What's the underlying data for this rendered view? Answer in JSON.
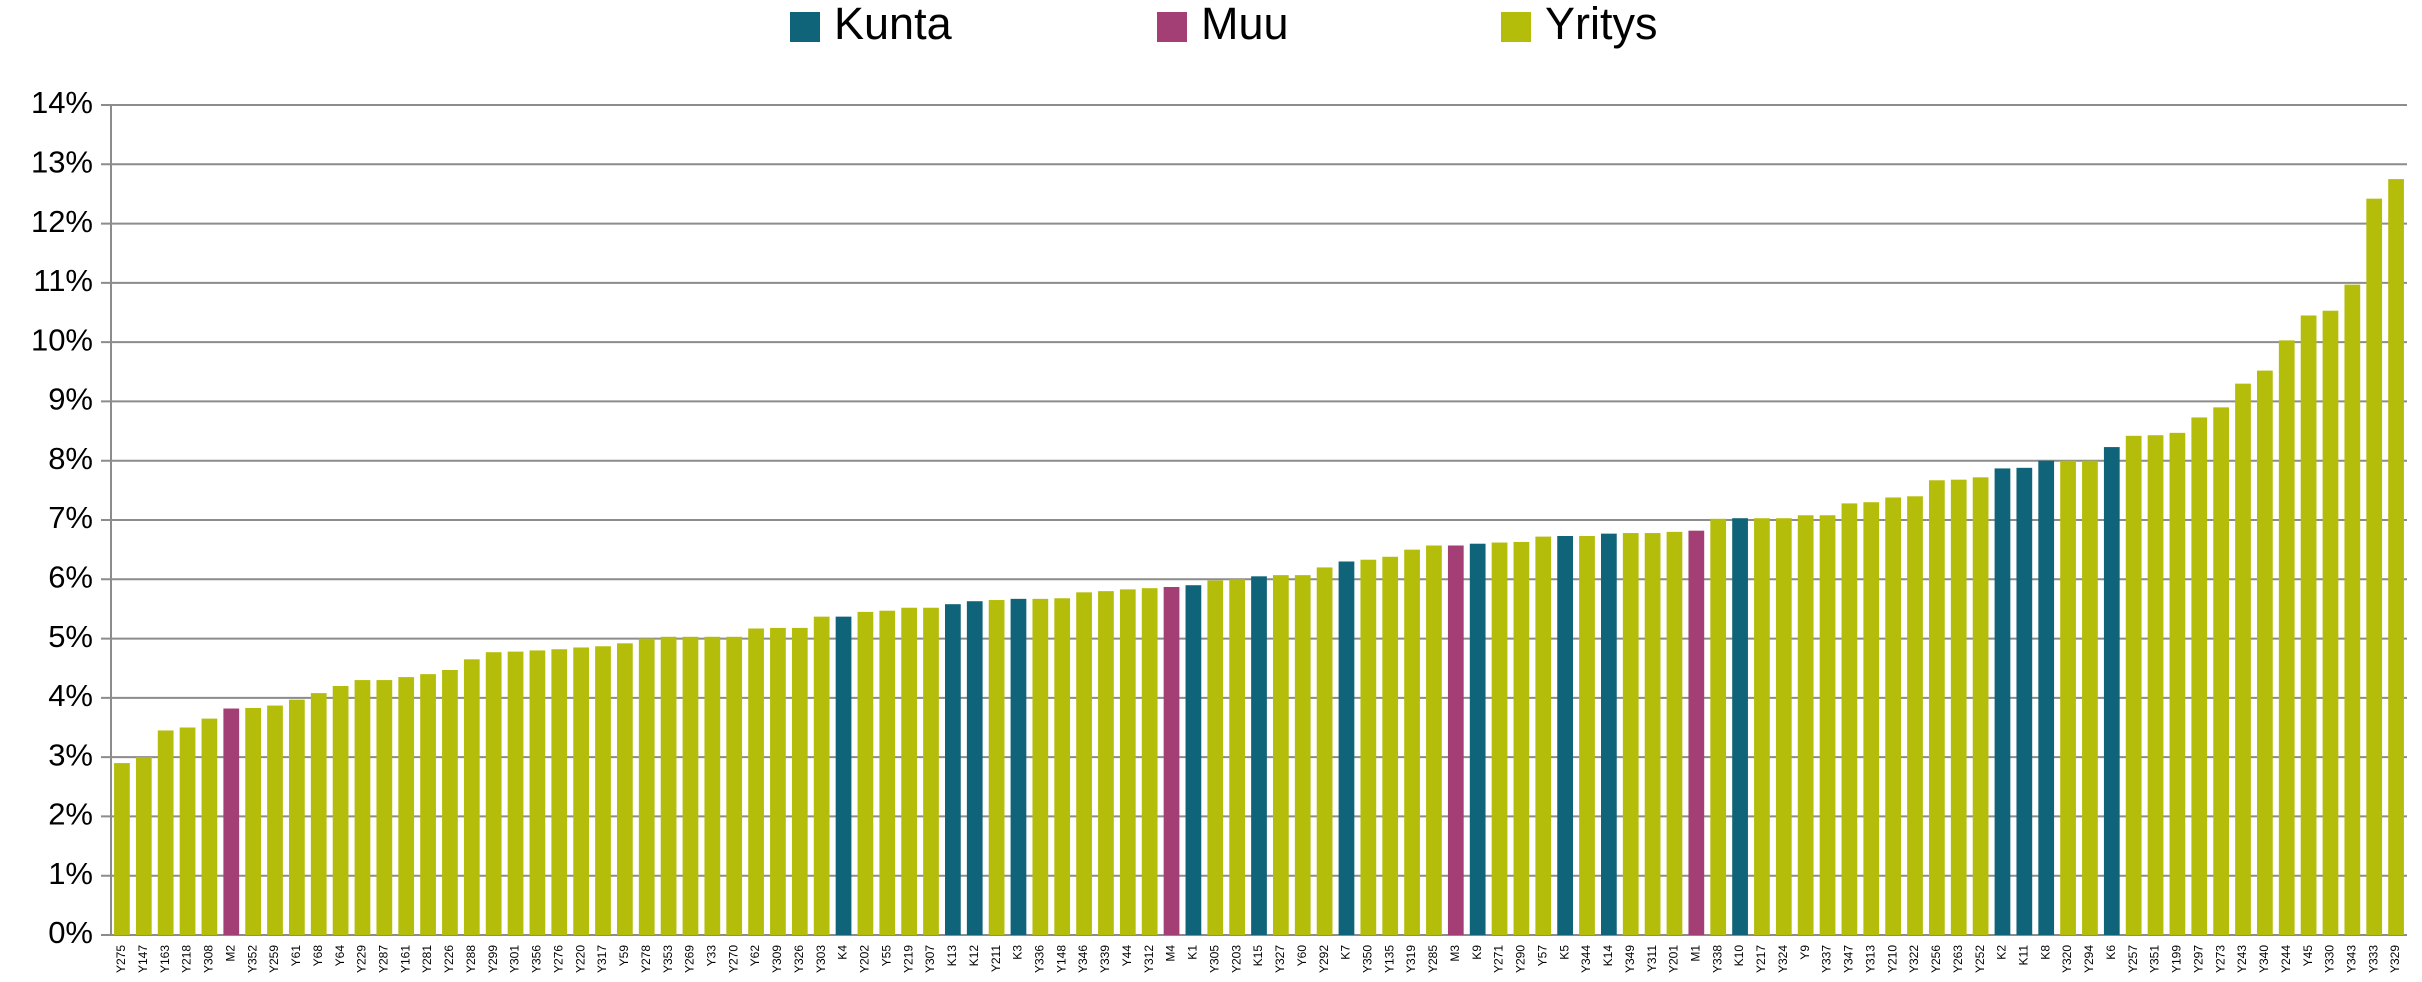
{
  "chart_data": {
    "type": "bar",
    "categories": [
      "Y275",
      "Y147",
      "Y163",
      "Y218",
      "Y308",
      "M2",
      "Y352",
      "Y259",
      "Y61",
      "Y68",
      "Y64",
      "Y229",
      "Y287",
      "Y161",
      "Y281",
      "Y226",
      "Y288",
      "Y299",
      "Y301",
      "Y356",
      "Y276",
      "Y220",
      "Y317",
      "Y59",
      "Y278",
      "Y353",
      "Y269",
      "Y33",
      "Y270",
      "Y62",
      "Y309",
      "Y326",
      "Y303",
      "K4",
      "Y202",
      "Y55",
      "Y219",
      "Y307",
      "K13",
      "K12",
      "Y211",
      "K3",
      "Y336",
      "Y148",
      "Y346",
      "Y339",
      "Y44",
      "Y312",
      "M4",
      "K1",
      "Y305",
      "Y203",
      "K15",
      "Y327",
      "Y60",
      "Y292",
      "K7",
      "Y350",
      "Y135",
      "Y319",
      "Y285",
      "M3",
      "K9",
      "Y271",
      "Y290",
      "Y57",
      "K5",
      "Y344",
      "K14",
      "Y349",
      "Y311",
      "Y201",
      "M1",
      "Y338",
      "K10",
      "Y217",
      "Y324",
      "Y9",
      "Y337",
      "Y347",
      "Y313",
      "Y210",
      "Y322",
      "Y256",
      "Y263",
      "Y252",
      "K2",
      "K11",
      "K8",
      "Y320",
      "Y294",
      "K6",
      "Y257",
      "Y351",
      "Y199",
      "Y297",
      "Y273",
      "Y243",
      "Y340",
      "Y244",
      "Y45",
      "Y330",
      "Y343",
      "Y333",
      "Y329"
    ],
    "series": [
      {
        "name": "Kunta",
        "color": "#0f6479",
        "values": [
          null,
          null,
          null,
          null,
          null,
          null,
          null,
          null,
          null,
          null,
          null,
          null,
          null,
          null,
          null,
          null,
          null,
          null,
          null,
          null,
          null,
          null,
          null,
          null,
          null,
          null,
          null,
          null,
          null,
          null,
          null,
          null,
          null,
          5.37,
          null,
          null,
          null,
          null,
          5.58,
          5.63,
          null,
          5.67,
          null,
          null,
          null,
          null,
          null,
          null,
          null,
          5.9,
          null,
          null,
          6.05,
          null,
          null,
          null,
          6.3,
          null,
          null,
          null,
          null,
          null,
          6.6,
          null,
          null,
          null,
          6.73,
          null,
          6.77,
          null,
          null,
          null,
          null,
          null,
          7.03,
          null,
          null,
          null,
          null,
          null,
          null,
          null,
          null,
          null,
          null,
          null,
          7.87,
          7.88,
          8.0,
          null,
          null,
          8.23,
          null,
          null,
          null,
          null,
          null,
          null,
          null,
          null,
          null,
          null,
          null,
          null,
          null
        ]
      },
      {
        "name": "Muu",
        "color": "#a33f74",
        "values": [
          null,
          null,
          null,
          null,
          null,
          3.82,
          null,
          null,
          null,
          null,
          null,
          null,
          null,
          null,
          null,
          null,
          null,
          null,
          null,
          null,
          null,
          null,
          null,
          null,
          null,
          null,
          null,
          null,
          null,
          null,
          null,
          null,
          null,
          null,
          null,
          null,
          null,
          null,
          null,
          null,
          null,
          null,
          null,
          null,
          null,
          null,
          null,
          null,
          5.87,
          null,
          null,
          null,
          null,
          null,
          null,
          null,
          null,
          null,
          null,
          null,
          null,
          6.57,
          null,
          null,
          null,
          null,
          null,
          null,
          null,
          null,
          null,
          null,
          6.82,
          null,
          null,
          null,
          null,
          null,
          null,
          null,
          null,
          null,
          null,
          null,
          null,
          null,
          null,
          null,
          null,
          null,
          null,
          null,
          null,
          null,
          null,
          null,
          null,
          null,
          null,
          null,
          null,
          null,
          null,
          null,
          null
        ]
      },
      {
        "name": "Yritys",
        "color": "#b5bd0b",
        "values": [
          2.9,
          3.0,
          3.45,
          3.5,
          3.65,
          null,
          3.83,
          3.87,
          3.97,
          4.08,
          4.2,
          4.3,
          4.3,
          4.35,
          4.4,
          4.47,
          4.65,
          4.77,
          4.78,
          4.8,
          4.82,
          4.85,
          4.87,
          4.92,
          5.0,
          5.03,
          5.03,
          5.03,
          5.03,
          5.17,
          5.18,
          5.18,
          5.37,
          null,
          5.45,
          5.47,
          5.52,
          5.52,
          null,
          null,
          5.65,
          null,
          5.67,
          5.68,
          5.78,
          5.8,
          5.83,
          5.85,
          null,
          null,
          5.98,
          6.0,
          null,
          6.07,
          6.07,
          6.2,
          null,
          6.33,
          6.38,
          6.5,
          6.57,
          null,
          null,
          6.62,
          6.63,
          6.72,
          null,
          6.73,
          null,
          6.78,
          6.78,
          6.8,
          null,
          7.02,
          null,
          7.03,
          7.03,
          7.08,
          7.08,
          7.28,
          7.3,
          7.38,
          7.4,
          7.67,
          7.68,
          7.72,
          null,
          null,
          null,
          8.0,
          8.0,
          null,
          8.42,
          8.43,
          8.47,
          8.73,
          8.9,
          9.3,
          9.52,
          10.03,
          10.45,
          10.53,
          10.97,
          12.42,
          12.75
        ]
      }
    ],
    "ylim": [
      0,
      14
    ],
    "yticks": [
      {
        "value": 0,
        "label": "0%"
      },
      {
        "value": 1,
        "label": "1%"
      },
      {
        "value": 2,
        "label": "2%"
      },
      {
        "value": 3,
        "label": "3%"
      },
      {
        "value": 4,
        "label": "4%"
      },
      {
        "value": 5,
        "label": "5%"
      },
      {
        "value": 6,
        "label": "6%"
      },
      {
        "value": 7,
        "label": "7%"
      },
      {
        "value": 8,
        "label": "8%"
      },
      {
        "value": 9,
        "label": "9%"
      },
      {
        "value": 10,
        "label": "10%"
      },
      {
        "value": 11,
        "label": "11%"
      },
      {
        "value": 12,
        "label": "12%"
      },
      {
        "value": 13,
        "label": "13%"
      },
      {
        "value": 14,
        "label": "14%"
      }
    ],
    "grid": true,
    "legend": "top"
  }
}
